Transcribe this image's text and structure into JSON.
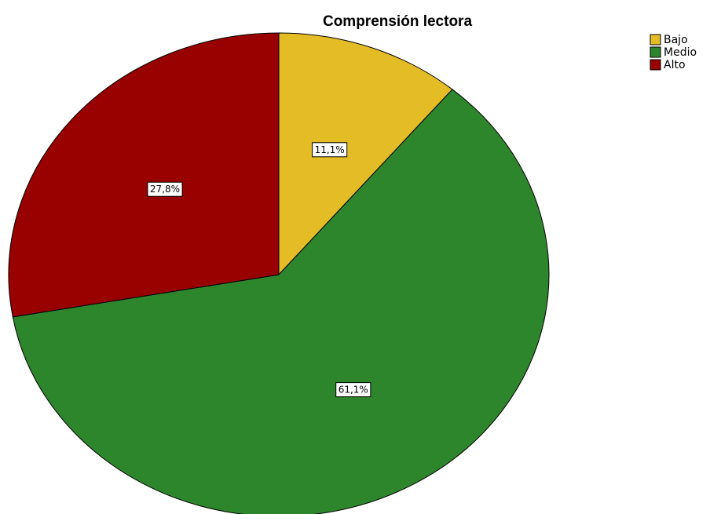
{
  "chart_data": {
    "type": "pie",
    "title": "Comprensión lectora",
    "categories": [
      "Bajo",
      "Medio",
      "Alto"
    ],
    "values": [
      11.1,
      61.1,
      27.8
    ],
    "data_labels": [
      "11,1%",
      "61,1%",
      "27,8%"
    ],
    "colors": [
      "#e3bc26",
      "#2e862c",
      "#990000"
    ],
    "start_angle": "12 o'clock",
    "direction": "clockwise",
    "legend": {
      "position": "top-right",
      "entries": [
        "Bajo",
        "Medio",
        "Alto"
      ]
    }
  }
}
